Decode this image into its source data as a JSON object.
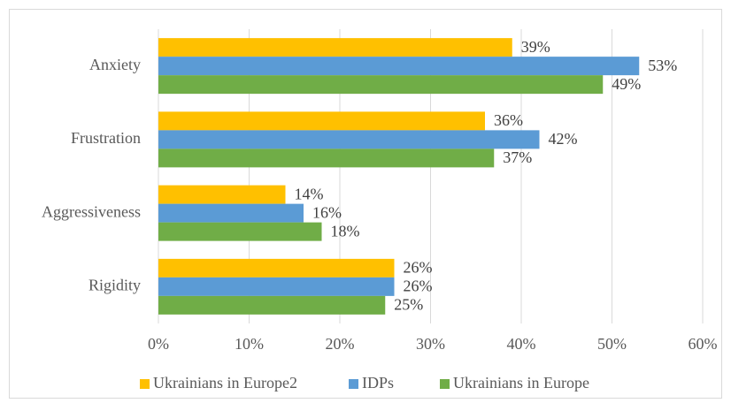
{
  "chart_data": {
    "type": "hbar",
    "categories": [
      "Anxiety",
      "Frustration",
      "Aggressiveness",
      "Rigidity"
    ],
    "series": [
      {
        "name": "Ukrainians in Europe2",
        "color": "#ffc000",
        "values": [
          39,
          36,
          14,
          26
        ],
        "value_labels": [
          "39%",
          "36%",
          "14%",
          "26%"
        ]
      },
      {
        "name": "IDPs",
        "color": "#5b9bd5",
        "values": [
          53,
          42,
          16,
          26
        ],
        "value_labels": [
          "53%",
          "42%",
          "16%",
          "26%"
        ]
      },
      {
        "name": "Ukrainians in Europe",
        "color": "#70ad47",
        "values": [
          49,
          37,
          18,
          25
        ],
        "value_labels": [
          "49%",
          "37%",
          "18%",
          "25%"
        ]
      }
    ],
    "xlim": [
      0,
      60
    ],
    "xticks": [
      {
        "value": 0,
        "label": "0%"
      },
      {
        "value": 10,
        "label": "10%"
      },
      {
        "value": 20,
        "label": "20%"
      },
      {
        "value": 30,
        "label": "30%"
      },
      {
        "value": 40,
        "label": "40%"
      },
      {
        "value": 50,
        "label": "50%"
      },
      {
        "value": 60,
        "label": "60%"
      }
    ],
    "grid": true,
    "legend": "bottom"
  }
}
